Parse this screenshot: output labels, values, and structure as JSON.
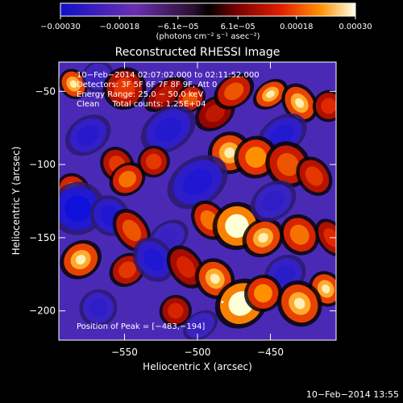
{
  "chart_data": {
    "type": "heatmap",
    "title": "Reconstructed RHESSI Image",
    "xlabel": "Heliocentric X (arcsec)",
    "ylabel": "Heliocentric Y (arcsec)",
    "xlim": [
      -595,
      -405
    ],
    "ylim": [
      -220,
      -30
    ],
    "xticks": [
      -550,
      -500,
      -450
    ],
    "yticks": [
      -50,
      -100,
      -150,
      -200
    ],
    "xtick_labels": [
      "−550",
      "−500",
      "−450"
    ],
    "ytick_labels": [
      "−50",
      "−100",
      "−150",
      "−200"
    ],
    "colorbar": {
      "min": -0.0003,
      "max": 0.0003,
      "ticks": [
        -0.0003,
        -0.00018,
        -6.1e-05,
        6.1e-05,
        0.00018,
        0.0003
      ],
      "tick_labels": [
        "−0.00030",
        "−0.00018",
        "−6.1e−05",
        "6.1e−05",
        "0.00018",
        "0.00030"
      ],
      "unit_label": "(photons cm⁻² s⁻¹ asec⁻²)"
    },
    "annotations": {
      "time_range": "10−Feb−2014 02:07:02.000 to 02:11:52.000",
      "detectors": "Detectors: 3F 5F 6F 7F 8F 9F, Att 0",
      "energy": "Energy Range: 25.0 − 50.0 keV",
      "clean": "Clean     Total counts: 1.25E+04",
      "peak": "Position of Peak = [−483,−194]"
    },
    "peak": {
      "x": -483,
      "y": -194
    },
    "sources": [
      {
        "x": -585,
        "y": -45,
        "v": 0.00024,
        "sx": 5,
        "sy": 6
      },
      {
        "x": -568,
        "y": -40,
        "v": -8e-05,
        "sx": 6,
        "sy": 6
      },
      {
        "x": -550,
        "y": -48,
        "v": 0.00016,
        "sx": 8,
        "sy": 8
      },
      {
        "x": -522,
        "y": -52,
        "v": 0.00012,
        "sx": 9,
        "sy": 5
      },
      {
        "x": -505,
        "y": -55,
        "v": 0.00018,
        "sx": 6,
        "sy": 5
      },
      {
        "x": -488,
        "y": -65,
        "v": 0.00012,
        "sx": 8,
        "sy": 6
      },
      {
        "x": -475,
        "y": -50,
        "v": 0.00018,
        "sx": 8,
        "sy": 6
      },
      {
        "x": -450,
        "y": -52,
        "v": 0.00024,
        "sx": 7,
        "sy": 5
      },
      {
        "x": -430,
        "y": -58,
        "v": 0.00024,
        "sx": 6,
        "sy": 8
      },
      {
        "x": -410,
        "y": -60,
        "v": 0.00015,
        "sx": 6,
        "sy": 6
      },
      {
        "x": -520,
        "y": -76,
        "v": -0.0002,
        "sx": 11,
        "sy": 8
      },
      {
        "x": -442,
        "y": -80,
        "v": -0.0002,
        "sx": 10,
        "sy": 7
      },
      {
        "x": -575,
        "y": -80,
        "v": -0.00018,
        "sx": 9,
        "sy": 7
      },
      {
        "x": -478,
        "y": -92,
        "v": 0.00024,
        "sx": 8,
        "sy": 8
      },
      {
        "x": -460,
        "y": -95,
        "v": 0.00022,
        "sx": 8,
        "sy": 8
      },
      {
        "x": -438,
        "y": -100,
        "v": 0.00018,
        "sx": 8,
        "sy": 9
      },
      {
        "x": -420,
        "y": -108,
        "v": 0.00016,
        "sx": 6,
        "sy": 8
      },
      {
        "x": -555,
        "y": -100,
        "v": 0.00016,
        "sx": 6,
        "sy": 7
      },
      {
        "x": -548,
        "y": -110,
        "v": 0.0002,
        "sx": 7,
        "sy": 6
      },
      {
        "x": -585,
        "y": -118,
        "v": 0.0002,
        "sx": 6,
        "sy": 7
      },
      {
        "x": -530,
        "y": -98,
        "v": 0.00016,
        "sx": 6,
        "sy": 6
      },
      {
        "x": -500,
        "y": -112,
        "v": -0.00022,
        "sx": 12,
        "sy": 9
      },
      {
        "x": -492,
        "y": -138,
        "v": 0.0002,
        "sx": 6,
        "sy": 8
      },
      {
        "x": -582,
        "y": -130,
        "v": -0.0003,
        "sx": 10,
        "sy": 10
      },
      {
        "x": -560,
        "y": -135,
        "v": -0.00022,
        "sx": 7,
        "sy": 8
      },
      {
        "x": -545,
        "y": -145,
        "v": 0.00018,
        "sx": 6,
        "sy": 9
      },
      {
        "x": -473,
        "y": -142,
        "v": 0.0003,
        "sx": 9,
        "sy": 9
      },
      {
        "x": -455,
        "y": -150,
        "v": 0.00024,
        "sx": 8,
        "sy": 7
      },
      {
        "x": -430,
        "y": -148,
        "v": 0.0002,
        "sx": 7,
        "sy": 8
      },
      {
        "x": -408,
        "y": -150,
        "v": 0.00015,
        "sx": 5,
        "sy": 8
      },
      {
        "x": -448,
        "y": -125,
        "v": -0.00014,
        "sx": 9,
        "sy": 7
      },
      {
        "x": -520,
        "y": -150,
        "v": -0.0001,
        "sx": 8,
        "sy": 6
      },
      {
        "x": -580,
        "y": -165,
        "v": 0.00024,
        "sx": 8,
        "sy": 7
      },
      {
        "x": -548,
        "y": -172,
        "v": 0.00016,
        "sx": 7,
        "sy": 6
      },
      {
        "x": -530,
        "y": -165,
        "v": -0.00022,
        "sx": 7,
        "sy": 9
      },
      {
        "x": -508,
        "y": -170,
        "v": 0.00014,
        "sx": 6,
        "sy": 9
      },
      {
        "x": -488,
        "y": -178,
        "v": 0.00024,
        "sx": 7,
        "sy": 8
      },
      {
        "x": -440,
        "y": -175,
        "v": -0.00016,
        "sx": 8,
        "sy": 7
      },
      {
        "x": -412,
        "y": -185,
        "v": 0.00024,
        "sx": 6,
        "sy": 7
      },
      {
        "x": -470,
        "y": -195,
        "v": 0.0003,
        "sx": 10,
        "sy": 9
      },
      {
        "x": -455,
        "y": -188,
        "v": 0.00022,
        "sx": 7,
        "sy": 7
      },
      {
        "x": -430,
        "y": -195,
        "v": 0.00024,
        "sx": 8,
        "sy": 9
      },
      {
        "x": -515,
        "y": -200,
        "v": 0.00014,
        "sx": 6,
        "sy": 6
      },
      {
        "x": -568,
        "y": -198,
        "v": -0.00014,
        "sx": 7,
        "sy": 7
      },
      {
        "x": -498,
        "y": -210,
        "v": -0.0001,
        "sx": 7,
        "sy": 5
      }
    ]
  },
  "footer_timestamp": "10−Feb−2014 13:55"
}
